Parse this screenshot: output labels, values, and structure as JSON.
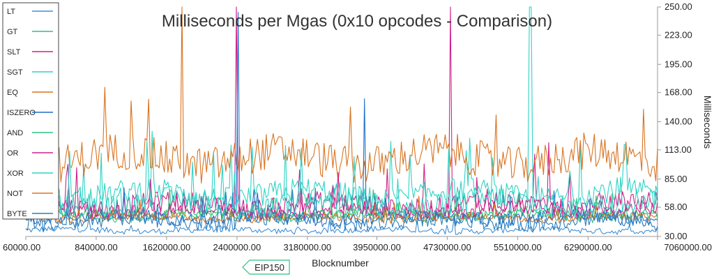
{
  "chart_data": {
    "type": "line",
    "title": "Milliseconds per Mgas (0x10 opcodes - Comparison)",
    "xlabel": "Blocknumber",
    "ylabel": "Milliseconds",
    "xlim": [
      60000,
      7060000
    ],
    "ylim": [
      30,
      250
    ],
    "x_ticks": [
      "60000.00",
      "840000.00",
      "1620000.00",
      "2400000.00",
      "3180000.00",
      "3950000.00",
      "4730000.00",
      "5510000.00",
      "6290000.00",
      "7060000.00"
    ],
    "x_tick_values": [
      60000,
      840000,
      1620000,
      2400000,
      3180000,
      3950000,
      4730000,
      5510000,
      6290000,
      7060000
    ],
    "y_ticks": [
      "30.00",
      "58.00",
      "85.00",
      "113.00",
      "140.00",
      "168.00",
      "195.00",
      "223.00",
      "250.00"
    ],
    "y_tick_values": [
      30,
      58,
      85,
      113,
      140,
      168,
      195,
      223,
      250
    ],
    "legend_position": "left",
    "series": [
      {
        "name": "LT",
        "color": "#3f8fd6",
        "base": 36,
        "noise": 3
      },
      {
        "name": "GT",
        "color": "#2ec27e",
        "base": 50,
        "noise": 5
      },
      {
        "name": "SLT",
        "color": "#d0218a",
        "base": 60,
        "noise": 10
      },
      {
        "name": "SGT",
        "color": "#2ed3c4",
        "base": 70,
        "noise": 12
      },
      {
        "name": "EQ",
        "color": "#d9731f",
        "base": 105,
        "noise": 18
      },
      {
        "name": "ISZERO",
        "color": "#1f6fc9",
        "base": 48,
        "noise": 6
      },
      {
        "name": "AND",
        "color": "#2ec27e",
        "base": 52,
        "noise": 5
      },
      {
        "name": "OR",
        "color": "#d0218a",
        "base": 56,
        "noise": 8
      },
      {
        "name": "XOR",
        "color": "#2ed3c4",
        "base": 62,
        "noise": 12
      },
      {
        "name": "NOT",
        "color": "#d9731f",
        "base": 48,
        "noise": 4
      },
      {
        "name": "BYTE",
        "color": "#2a7fc0",
        "base": 45,
        "noise": 8
      }
    ],
    "spikes": [
      {
        "series": "EQ",
        "x": 1790000,
        "y": 250
      },
      {
        "series": "SLT",
        "x": 2400000,
        "y": 250
      },
      {
        "series": "ISZERO",
        "x": 2410000,
        "y": 245
      },
      {
        "series": "SLT",
        "x": 4760000,
        "y": 250
      },
      {
        "series": "SGT",
        "x": 5650000,
        "y": 250
      },
      {
        "series": "ISZERO",
        "x": 3820000,
        "y": 162
      },
      {
        "series": "EQ",
        "x": 1220000,
        "y": 160
      },
      {
        "series": "SGT",
        "x": 6700000,
        "y": 118
      },
      {
        "series": "OR",
        "x": 5850000,
        "y": 120
      }
    ],
    "annotations": [
      {
        "label": "EIP150",
        "x": 2463000
      }
    ]
  }
}
